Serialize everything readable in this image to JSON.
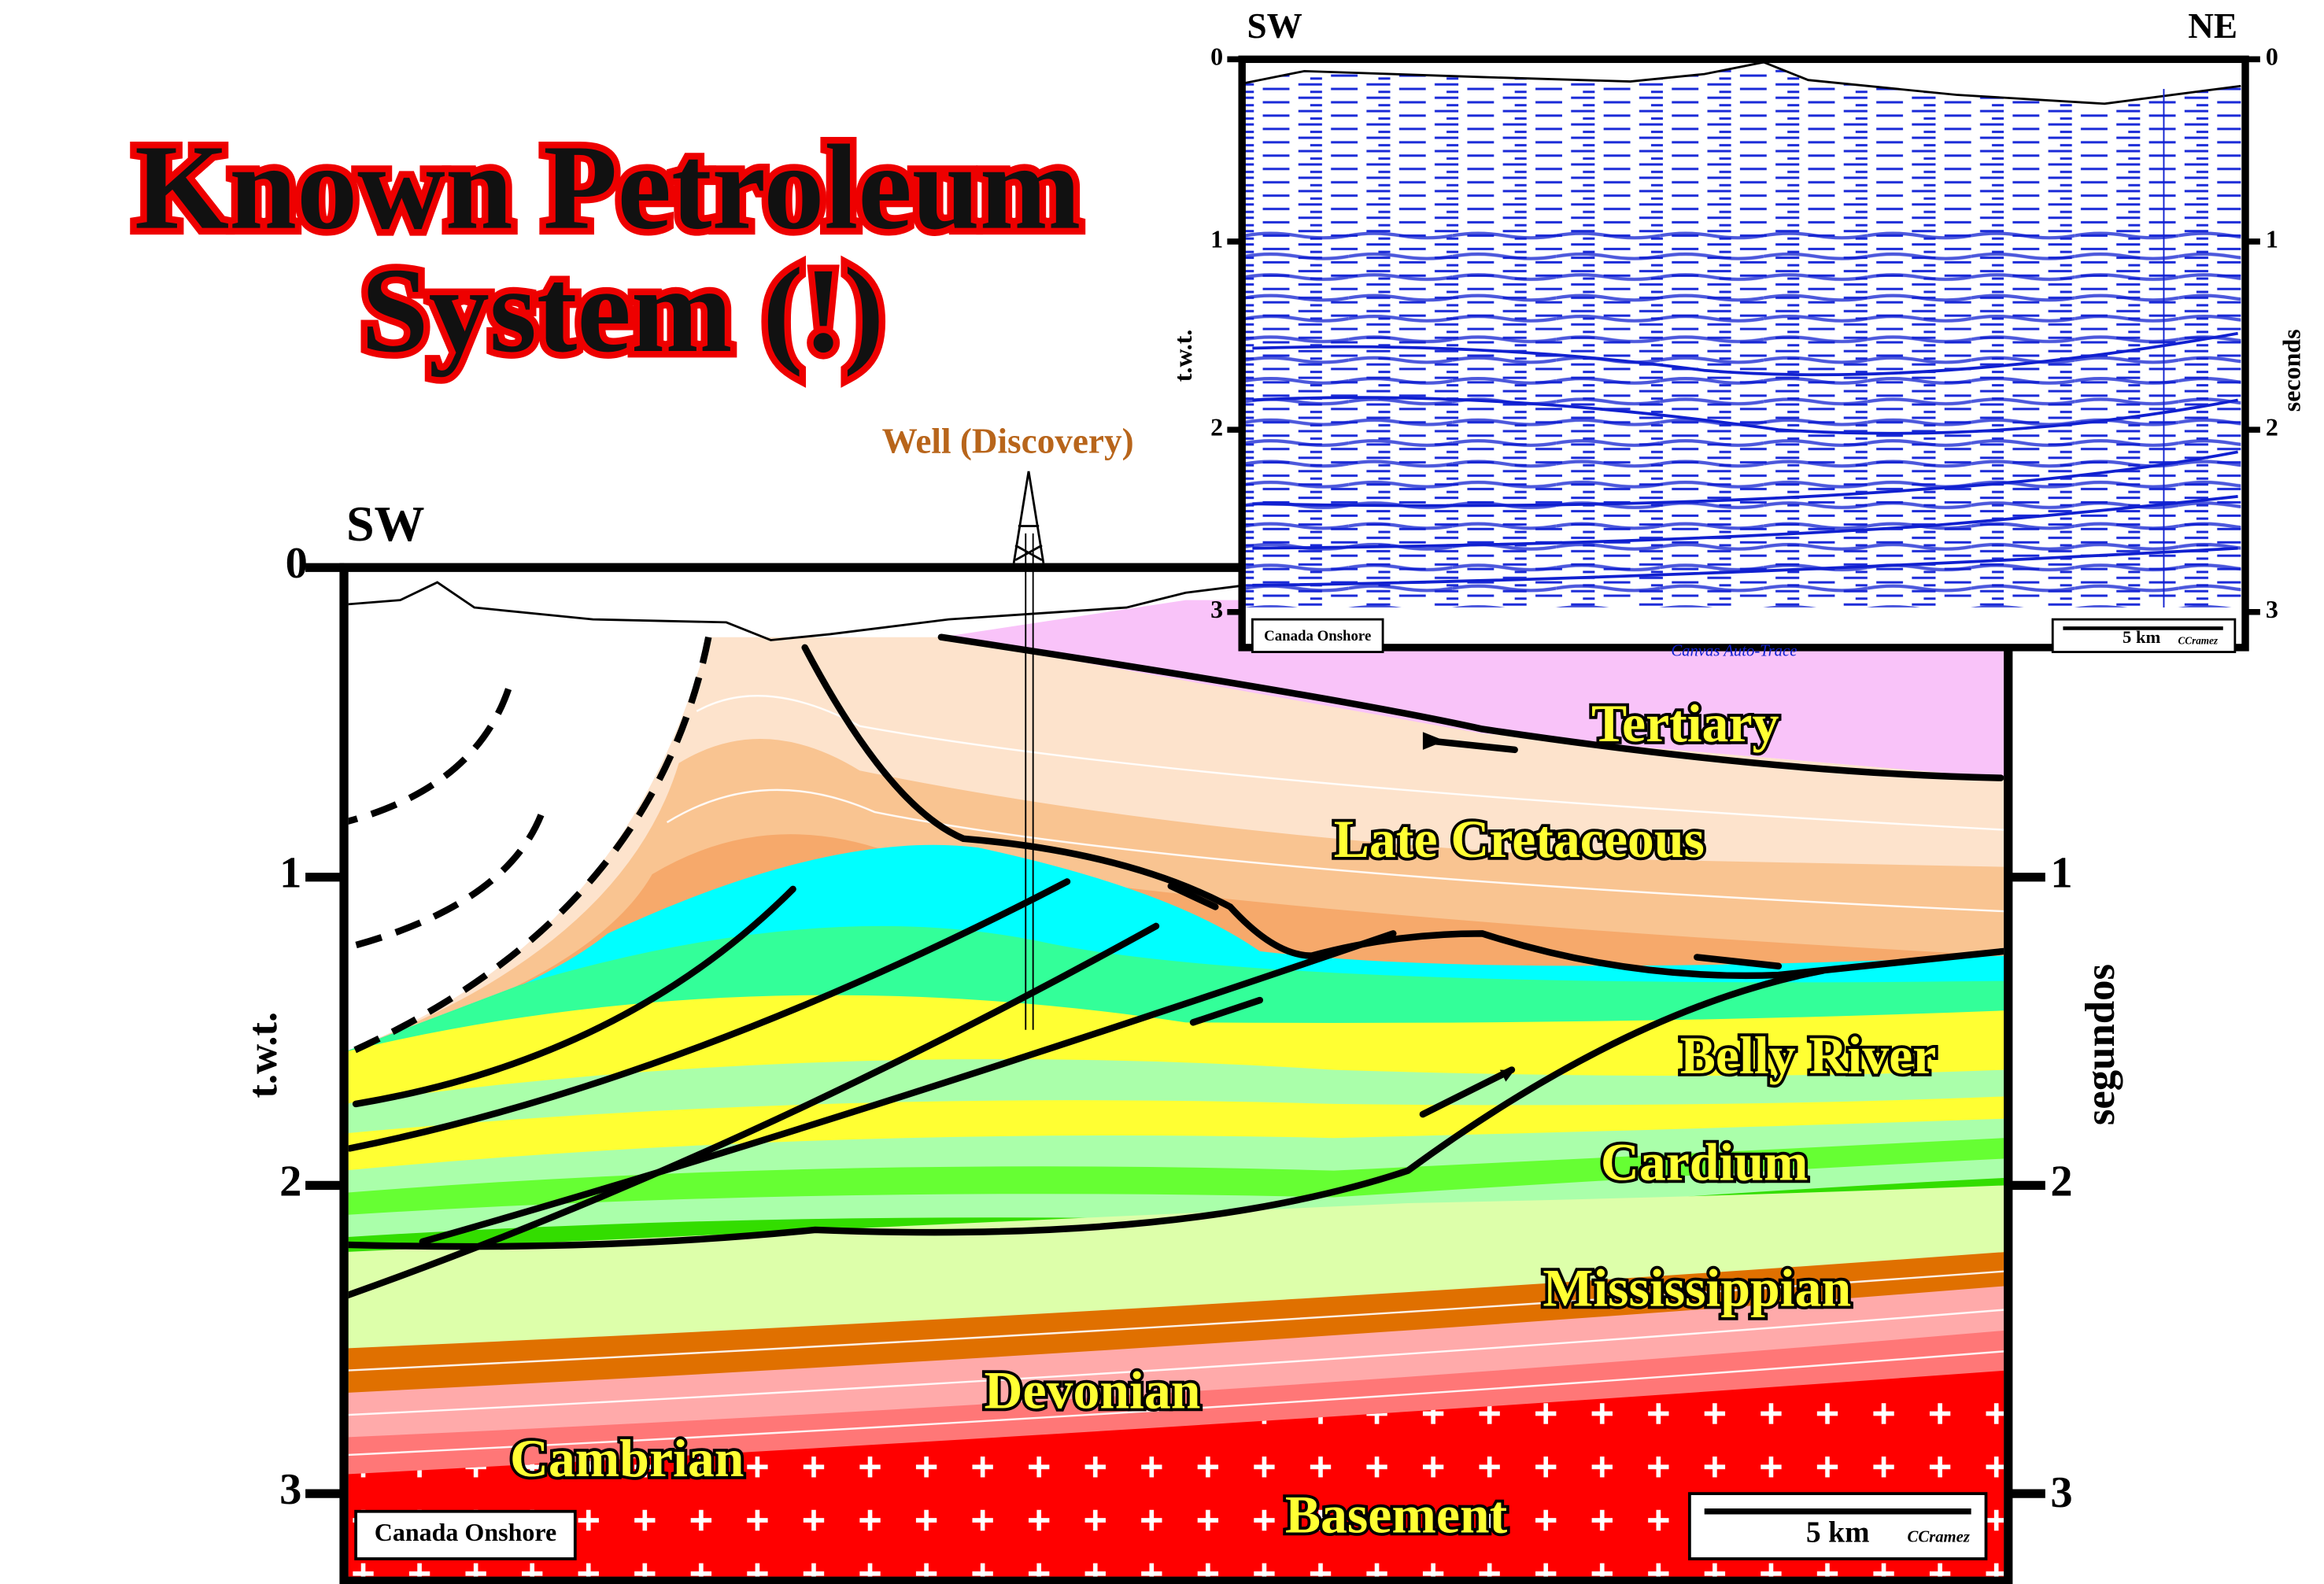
{
  "title": {
    "line1": "Known Petroleum",
    "line2": "System (!)"
  },
  "well_label": "Well (Discovery)",
  "cross_section": {
    "left_end": "SW",
    "y_label_left": "t.w.t.",
    "y_label_right": "segundos",
    "left_ticks": [
      "0",
      "1",
      "2",
      "3"
    ],
    "right_ticks": [
      "1",
      "2",
      "3"
    ],
    "formations": [
      "Tertiary",
      "Late Cretaceous",
      "Belly River",
      "Cardium",
      "Mississippian",
      "Devonian",
      "Cambrian",
      "Basement"
    ],
    "location": "Canada Onshore",
    "scale": "5 km",
    "author": "CCramez"
  },
  "seismic": {
    "left_end": "SW",
    "right_end": "NE",
    "y_label_left": "t.w.t.",
    "y_label_right": "seconds",
    "ticks": [
      "0",
      "1",
      "2",
      "3"
    ],
    "location": "Canada Onshore",
    "scale": "5 km",
    "author": "CCramez",
    "software": "Canvas Auto-Trace"
  }
}
